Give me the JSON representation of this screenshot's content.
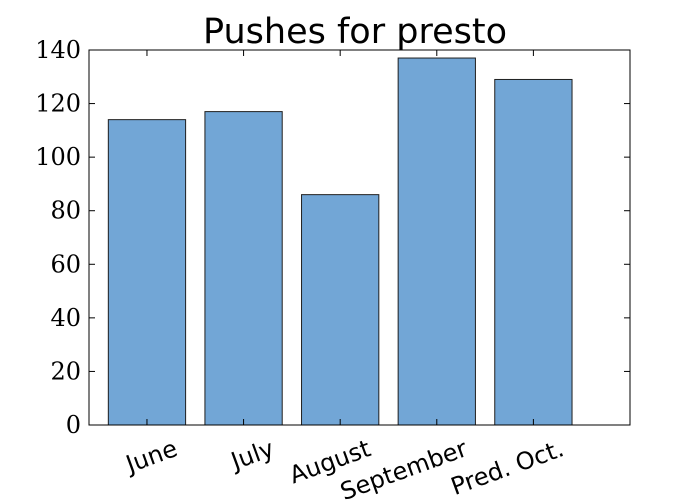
{
  "chart_data": {
    "type": "bar",
    "title": "Pushes for presto",
    "xlabel": "",
    "ylabel": "",
    "categories": [
      "June",
      "July",
      "August",
      "September",
      "Pred. Oct."
    ],
    "values": [
      114,
      117,
      86,
      137,
      129
    ],
    "ylim": [
      0,
      140
    ],
    "yticks": [
      0,
      20,
      40,
      60,
      80,
      100,
      120,
      140
    ],
    "ytick_labels": [
      "0",
      "20",
      "40",
      "60",
      "80",
      "100",
      "120",
      "140"
    ],
    "xtick_rotation_deg": -20,
    "grid": false,
    "legend": "none",
    "colors": {
      "bar_fill": "#72a6d6",
      "bar_edge": "#1f1f1f",
      "axis": "#000000",
      "background": "#ffffff"
    }
  }
}
